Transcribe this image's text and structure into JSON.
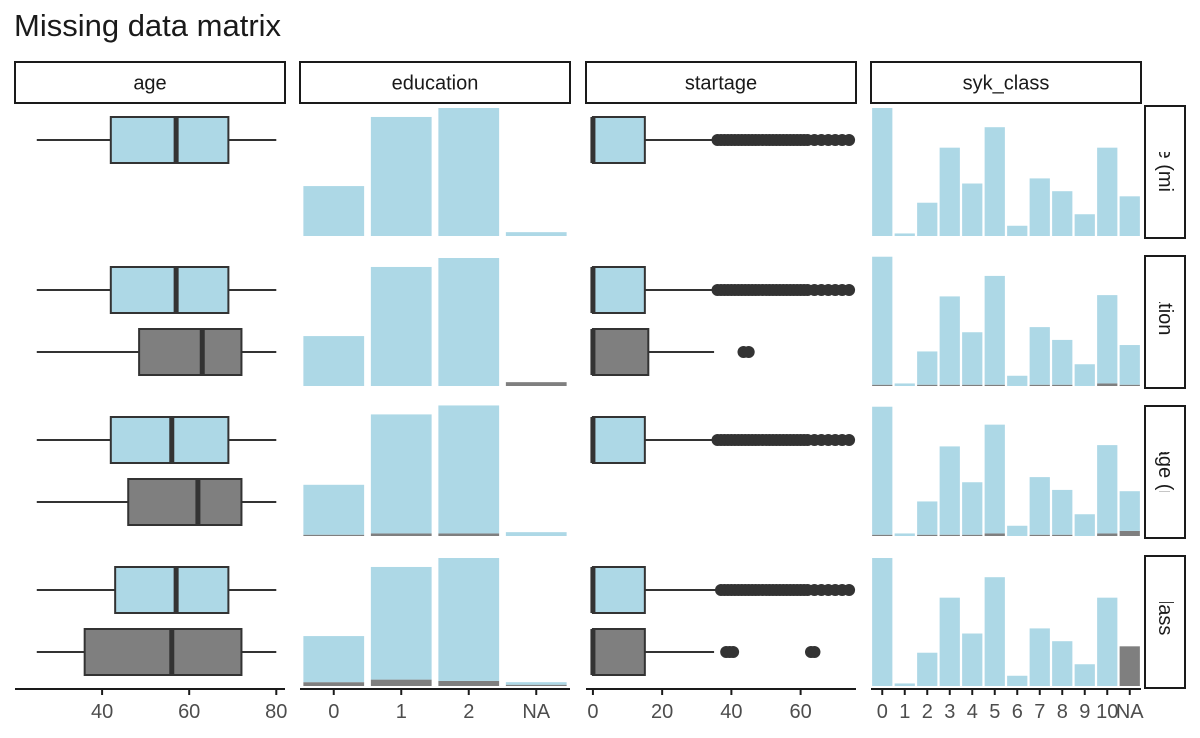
{
  "title": "Missing data matrix",
  "colors": {
    "observed": "#add8e6",
    "missing": "#7f7f7f",
    "outline": "#333333"
  },
  "chart_data": {
    "type": "faceted-boxplot-bar",
    "columns": [
      "age",
      "education",
      "startage",
      "syk_class"
    ],
    "rows": [
      "age (miss)",
      "education (miss)",
      "startage (miss)",
      "syk_class (miss)"
    ],
    "axes": {
      "age": {
        "kind": "numeric",
        "ticks": [
          40,
          60,
          80
        ],
        "xlim": [
          20,
          82
        ]
      },
      "education": {
        "kind": "categorical",
        "categories": [
          "0",
          "1",
          "2",
          "NA"
        ]
      },
      "startage": {
        "kind": "numeric",
        "ticks": [
          0,
          20,
          40,
          60
        ],
        "xlim": [
          -2,
          76
        ]
      },
      "syk_class": {
        "kind": "categorical",
        "categories": [
          "0",
          "1",
          "2",
          "3",
          "4",
          "5",
          "6",
          "7",
          "8",
          "9",
          "10",
          "NA"
        ]
      }
    },
    "panels": {
      "age": [
        [
          {
            "group": "observed",
            "min": 25,
            "q1": 42,
            "median": 57,
            "q3": 69,
            "max": 80
          }
        ],
        [
          {
            "group": "observed",
            "min": 25,
            "q1": 42,
            "median": 57,
            "q3": 69,
            "max": 80
          },
          {
            "group": "missing",
            "min": 25,
            "q1": 48.5,
            "median": 63,
            "q3": 72,
            "max": 80
          }
        ],
        [
          {
            "group": "observed",
            "min": 25,
            "q1": 42,
            "median": 56,
            "q3": 69,
            "max": 80
          },
          {
            "group": "missing",
            "min": 25,
            "q1": 46,
            "median": 62,
            "q3": 72,
            "max": 80
          }
        ],
        [
          {
            "group": "observed",
            "min": 25,
            "q1": 43,
            "median": 57,
            "q3": 69,
            "max": 80
          },
          {
            "group": "missing",
            "min": 25,
            "q1": 36,
            "median": 56,
            "q3": 72,
            "max": 80
          }
        ]
      ],
      "education": [
        {
          "observed": [
            0.39,
            0.93,
            1.0,
            0.03
          ],
          "missing": [
            0,
            0,
            0,
            0
          ]
        },
        {
          "observed": [
            0.39,
            0.93,
            1.0,
            0.0
          ],
          "missing": [
            0,
            0,
            0,
            0.03
          ]
        },
        {
          "observed": [
            0.39,
            0.93,
            1.0,
            0.03
          ],
          "missing": [
            0.01,
            0.02,
            0.02,
            0
          ]
        },
        {
          "observed": [
            0.36,
            0.88,
            0.96,
            0.02
          ],
          "missing": [
            0.03,
            0.05,
            0.04,
            0.01
          ]
        }
      ],
      "startage": [
        [
          {
            "group": "observed",
            "min": 0,
            "q1": 0,
            "median": 0,
            "q3": 15,
            "max": 36,
            "outliers": [
              36,
              37,
              38,
              39,
              40,
              41,
              42,
              43,
              44,
              45,
              46,
              47,
              48,
              49,
              50,
              51,
              52,
              53,
              54,
              55,
              56,
              57,
              58,
              59,
              60,
              61,
              62,
              64,
              66,
              68,
              70,
              72,
              74
            ]
          }
        ],
        [
          {
            "group": "observed",
            "min": 0,
            "q1": 0,
            "median": 0,
            "q3": 15,
            "max": 36,
            "outliers": [
              36,
              37,
              38,
              39,
              40,
              41,
              42,
              43,
              44,
              45,
              46,
              47,
              48,
              49,
              50,
              51,
              52,
              53,
              54,
              55,
              56,
              57,
              58,
              59,
              60,
              61,
              62,
              64,
              66,
              68,
              70,
              72,
              74
            ]
          },
          {
            "group": "missing",
            "min": 0,
            "q1": 0,
            "median": 0,
            "q3": 16,
            "max": 35,
            "outliers": [
              43.5,
              45
            ]
          }
        ],
        [
          {
            "group": "observed",
            "min": 0,
            "q1": 0,
            "median": 0,
            "q3": 15,
            "max": 36,
            "outliers": [
              36,
              37,
              38,
              39,
              40,
              41,
              42,
              43,
              44,
              45,
              46,
              47,
              48,
              49,
              50,
              51,
              52,
              53,
              54,
              55,
              56,
              57,
              58,
              59,
              60,
              61,
              62,
              64,
              66,
              68,
              70,
              72,
              74
            ]
          }
        ],
        [
          {
            "group": "observed",
            "min": 0,
            "q1": 0,
            "median": 0,
            "q3": 15,
            "max": 36,
            "outliers": [
              37,
              38,
              39,
              40,
              41,
              42,
              43,
              44,
              45,
              46,
              47,
              48,
              49,
              50,
              51,
              52,
              53,
              54,
              55,
              56,
              57,
              58,
              59,
              60,
              61,
              62,
              64,
              66,
              68,
              70,
              72,
              74
            ]
          },
          {
            "group": "missing",
            "min": 0,
            "q1": 0,
            "median": 0,
            "q3": 15,
            "max": 35,
            "outliers": [
              38.5,
              39.5,
              40.5,
              63,
              64
            ]
          }
        ]
      ],
      "syk_class": [
        {
          "observed": [
            1.0,
            0.02,
            0.26,
            0.69,
            0.41,
            0.85,
            0.08,
            0.45,
            0.35,
            0.17,
            0.69,
            0.31
          ],
          "missing": [
            0,
            0,
            0,
            0,
            0,
            0,
            0,
            0,
            0,
            0,
            0,
            0
          ]
        },
        {
          "observed": [
            1.0,
            0.02,
            0.26,
            0.69,
            0.41,
            0.85,
            0.08,
            0.45,
            0.35,
            0.17,
            0.69,
            0.31
          ],
          "missing": [
            0.01,
            0,
            0.01,
            0.01,
            0.01,
            0.01,
            0,
            0.01,
            0.01,
            0,
            0.02,
            0.01
          ]
        },
        {
          "observed": [
            1.0,
            0.02,
            0.26,
            0.69,
            0.41,
            0.85,
            0.08,
            0.45,
            0.35,
            0.17,
            0.69,
            0.31
          ],
          "missing": [
            0.01,
            0,
            0.01,
            0.01,
            0.01,
            0.02,
            0,
            0.01,
            0.01,
            0,
            0.02,
            0.04
          ]
        },
        {
          "observed": [
            1.0,
            0.02,
            0.26,
            0.69,
            0.41,
            0.85,
            0.08,
            0.45,
            0.35,
            0.17,
            0.69,
            0.0
          ],
          "missing": [
            0,
            0,
            0,
            0,
            0,
            0,
            0,
            0,
            0,
            0,
            0,
            0.31
          ]
        }
      ]
    }
  }
}
